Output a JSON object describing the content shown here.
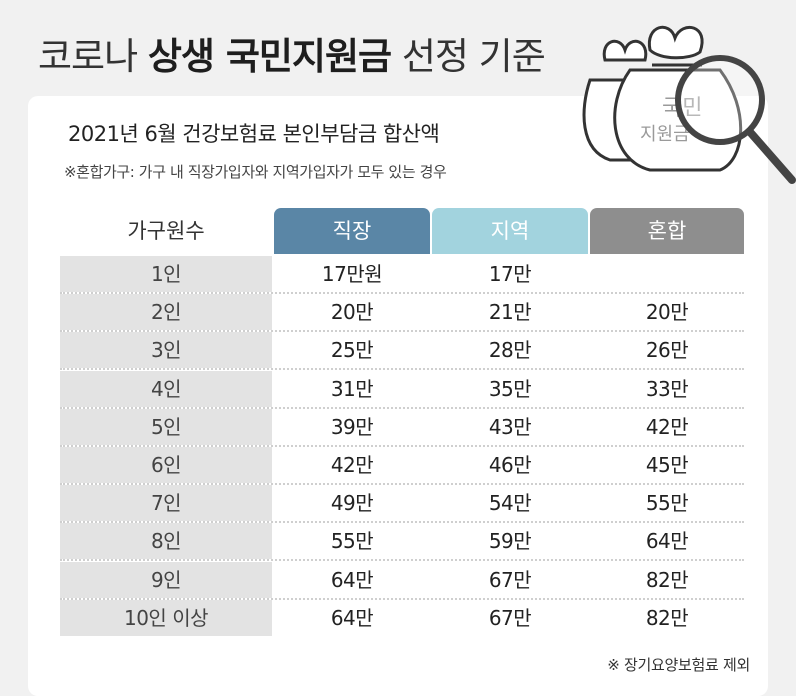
{
  "title": {
    "pre": "코로나 ",
    "bold": "상생 국민지원금",
    "post": " 선정 기준"
  },
  "subtitle": "2021년 6월 건강보험료 본인부담금 합산액",
  "note": "※혼합가구: 가구 내 직장가입자와 지역가입자가 모두 있는 경우",
  "footnote": "※ 장기요양보험료 제외",
  "graphic": {
    "bag_text_1": "국민",
    "bag_text_2": "지원금"
  },
  "table": {
    "headers": [
      "가구원수",
      "직장",
      "지역",
      "혼합"
    ],
    "rows": [
      [
        "1인",
        "17만원",
        "17만",
        ""
      ],
      [
        "2인",
        "20만",
        "21만",
        "20만"
      ],
      [
        "3인",
        "25만",
        "28만",
        "26만"
      ],
      [
        "4인",
        "31만",
        "35만",
        "33만"
      ],
      [
        "5인",
        "39만",
        "43만",
        "42만"
      ],
      [
        "6인",
        "42만",
        "46만",
        "45만"
      ],
      [
        "7인",
        "49만",
        "54만",
        "55만"
      ],
      [
        "8인",
        "55만",
        "59만",
        "64만"
      ],
      [
        "9인",
        "64만",
        "67만",
        "82만"
      ],
      [
        "10인 이상",
        "64만",
        "67만",
        "82만"
      ]
    ]
  },
  "colors": {
    "header_workplace": "#5a86a6",
    "header_regional": "#a2d3de",
    "header_mixed": "#8e8e8e",
    "first_column": "#e3e3e3"
  }
}
